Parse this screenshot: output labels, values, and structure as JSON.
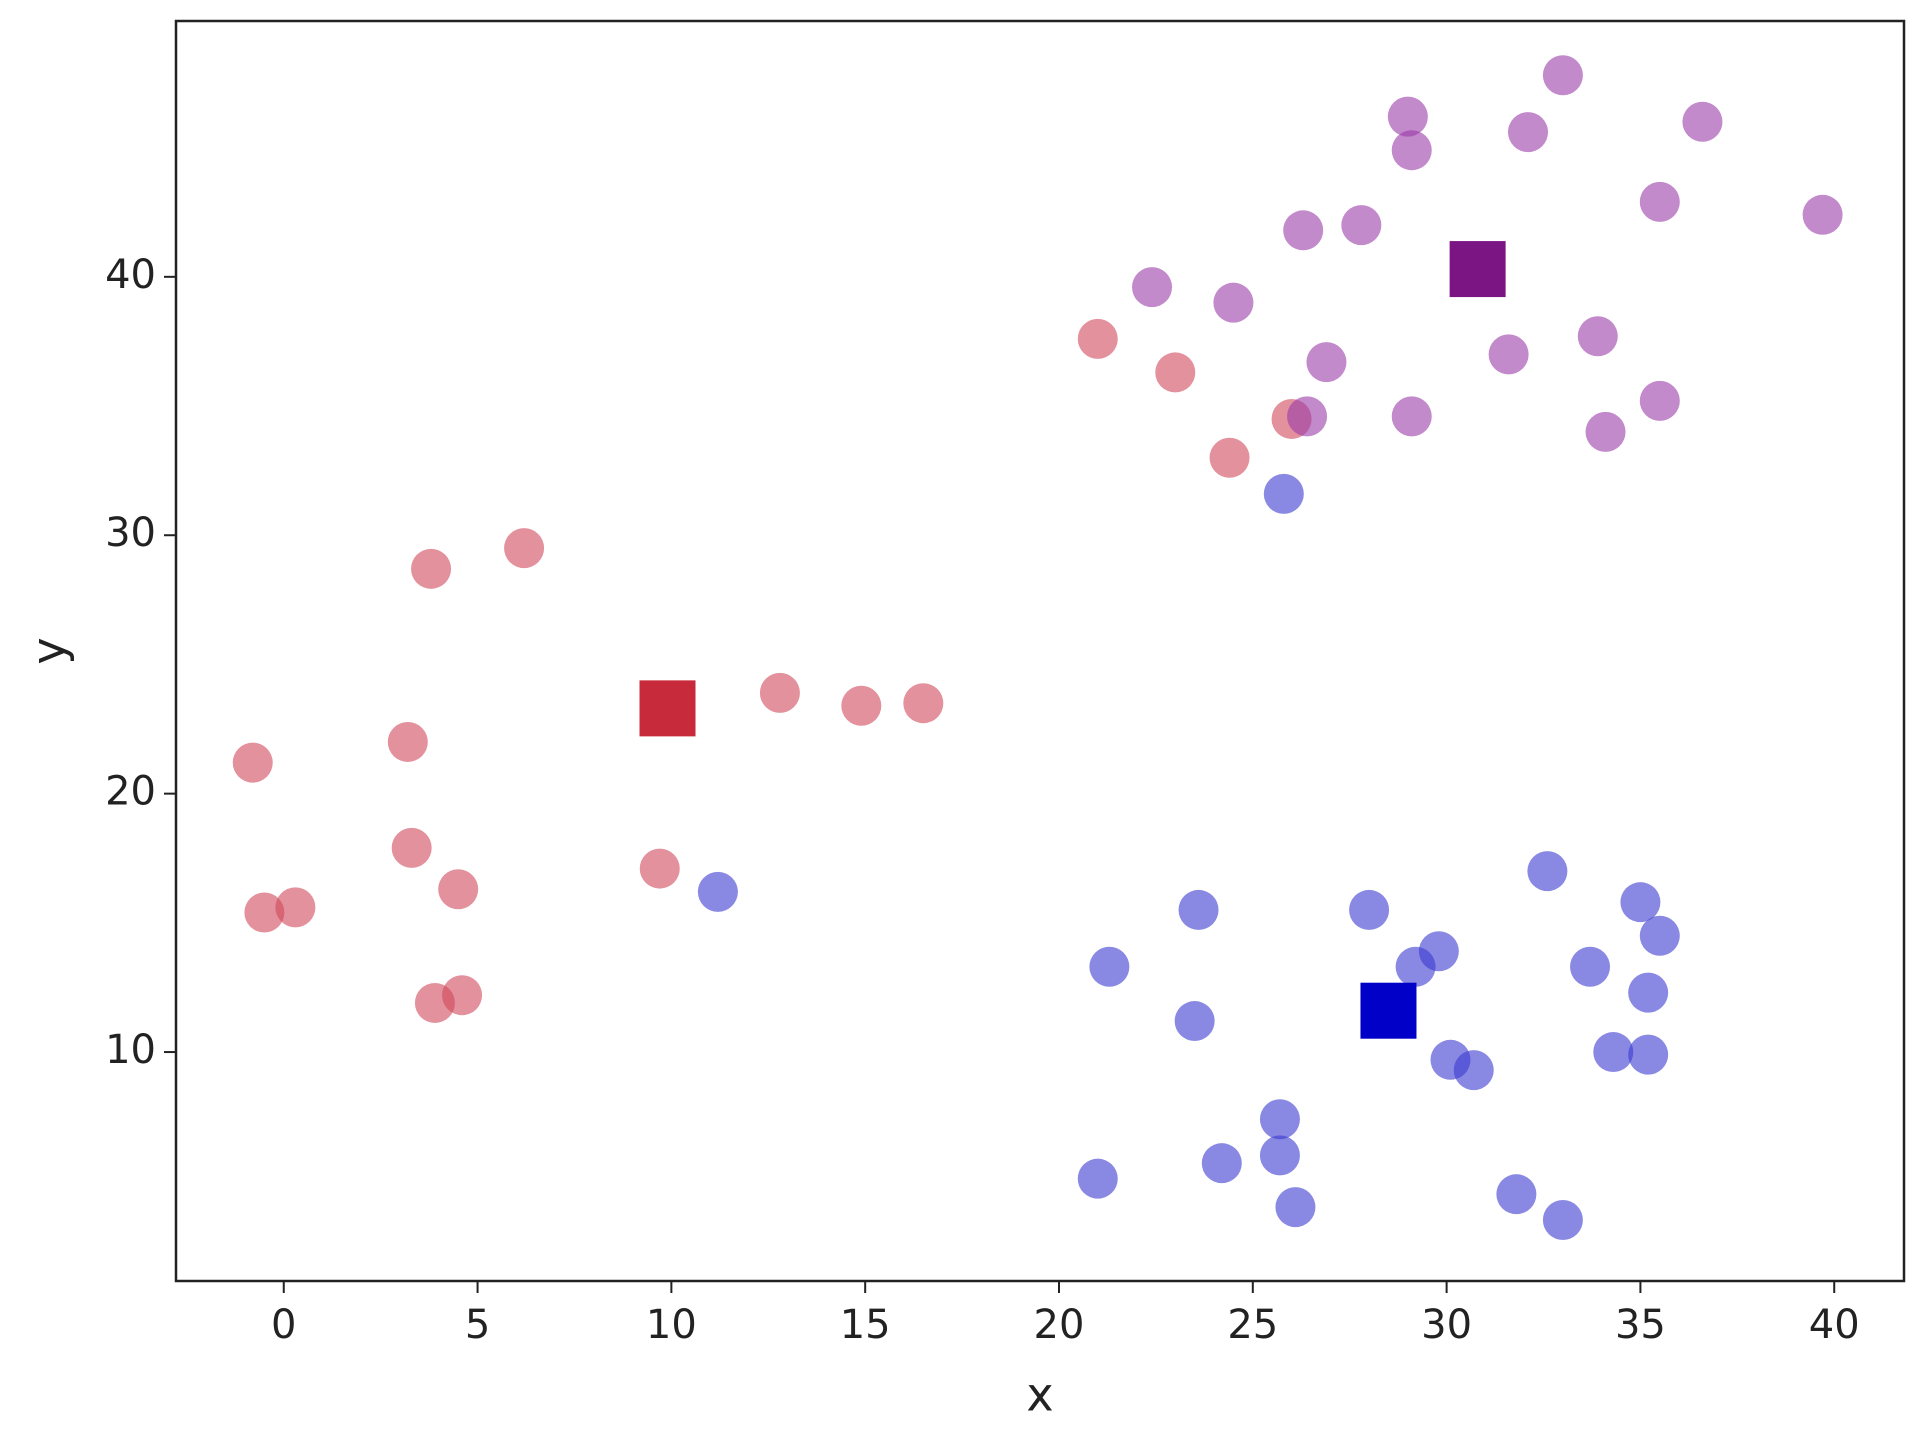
{
  "chart_data": {
    "type": "scatter",
    "xlabel": "x",
    "ylabel": "y",
    "xlim": [
      -2.78,
      41.8
    ],
    "ylim": [
      1.14,
      49.9
    ],
    "xticks": [
      0,
      5,
      10,
      15,
      20,
      25,
      30,
      35,
      40
    ],
    "yticks": [
      10,
      20,
      30,
      40
    ],
    "grid": false,
    "series": [
      {
        "color": "#d0485a",
        "marker": "circle",
        "x": [
          21.0,
          23.0,
          26.0,
          24.4,
          6.2,
          3.8,
          12.8,
          14.9,
          16.5,
          3.2,
          -0.8,
          3.3,
          4.5,
          9.7,
          -0.5,
          0.3,
          3.9,
          4.6
        ],
        "values": [
          37.6,
          36.3,
          34.5,
          33.0,
          29.5,
          28.7,
          23.9,
          23.4,
          23.5,
          22.0,
          21.2,
          17.9,
          16.3,
          17.1,
          15.4,
          15.6,
          11.9,
          12.2
        ]
      },
      {
        "color": "#3a3ad0",
        "marker": "circle",
        "x": [
          25.8,
          11.2,
          23.6,
          28.0,
          32.6,
          35.0,
          35.5,
          21.3,
          29.8,
          29.2,
          33.7,
          35.2,
          23.5,
          30.1,
          30.7,
          34.3,
          35.2,
          25.7,
          25.7,
          24.2,
          21.0,
          26.1,
          31.8,
          33.0
        ],
        "values": [
          31.6,
          16.2,
          15.5,
          15.5,
          17.0,
          15.8,
          14.5,
          13.3,
          13.9,
          13.3,
          13.3,
          12.3,
          11.2,
          9.7,
          9.3,
          10.0,
          9.9,
          7.4,
          6.0,
          5.7,
          5.1,
          4.0,
          4.5,
          3.5
        ]
      },
      {
        "color": "#9a3aa8",
        "marker": "circle",
        "x": [
          33.0,
          29.0,
          29.1,
          32.1,
          36.6,
          35.5,
          39.7,
          26.3,
          27.8,
          22.4,
          24.5,
          26.9,
          31.6,
          33.9,
          26.4,
          29.1,
          34.1,
          35.5
        ],
        "values": [
          47.8,
          46.2,
          44.9,
          45.6,
          46.0,
          42.9,
          42.4,
          41.8,
          42.0,
          39.6,
          39.0,
          36.7,
          37.0,
          37.7,
          34.6,
          34.6,
          34.0,
          35.2
        ]
      },
      {
        "color": "#c72a3a",
        "marker": "square",
        "x": [
          9.9
        ],
        "values": [
          23.3
        ]
      },
      {
        "color": "#0000c8",
        "marker": "square",
        "x": [
          28.5
        ],
        "values": [
          11.6
        ]
      },
      {
        "color": "#7b1584",
        "marker": "square",
        "x": [
          30.8
        ],
        "values": [
          40.3
        ]
      }
    ]
  }
}
